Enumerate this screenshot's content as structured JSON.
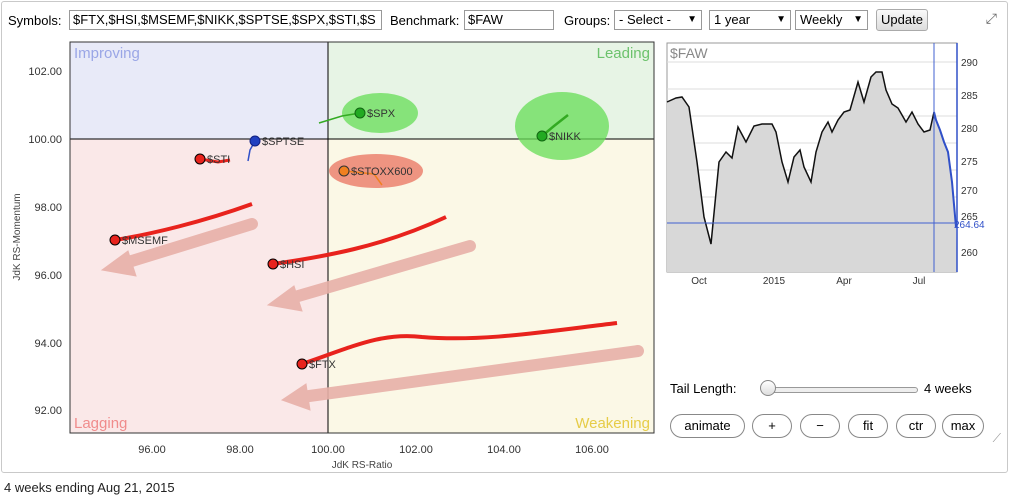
{
  "toolbar": {
    "symbols_label": "Symbols:",
    "symbols_value": "$FTX,$HSI,$MSEMF,$NIKK,$SPTSE,$SPX,$STI,$S",
    "benchmark_label": "Benchmark:",
    "benchmark_value": "$FAW",
    "groups_label": "Groups:",
    "groups_selected": "- Select -",
    "period_selected": "1 year",
    "interval_selected": "Weekly",
    "update_label": "Update"
  },
  "rrg": {
    "xlabel": "JdK RS-Ratio",
    "ylabel": "JdK RS-Momentum",
    "xticks": [
      "96.00",
      "98.00",
      "100.00",
      "102.00",
      "104.00",
      "106.00"
    ],
    "yticks": [
      "102.00",
      "100.00",
      "98.00",
      "96.00",
      "94.00",
      "92.00"
    ],
    "quadrants": {
      "improving": "Improving",
      "leading": "Leading",
      "lagging": "Lagging",
      "weakening": "Weakening"
    },
    "colors": {
      "improving": "#e8eaf8",
      "leading": "#e7f4e5",
      "lagging": "#fae8e8",
      "weakening": "#fbf8e6",
      "improving_text": "#9aa6e6",
      "leading_text": "#6cc26c",
      "lagging_text": "#f08c8c",
      "weakening_text": "#e6cc48"
    },
    "symbols": [
      "$SPX",
      "$NIKK",
      "$SPTSE",
      "$STI",
      "$STOXX600",
      "$MSEMF",
      "$HSI",
      "$FTX"
    ]
  },
  "benchmark_chart": {
    "title": "$FAW",
    "yticks": [
      "290",
      "285",
      "280",
      "275",
      "270",
      "265",
      "260"
    ],
    "xticks": [
      "Oct",
      "2015",
      "Apr",
      "Jul"
    ],
    "last_value": "264.64"
  },
  "controls": {
    "tail_length_label": "Tail Length:",
    "tail_length_value": "4 weeks",
    "tail_length_weeks": 4,
    "animate_label": "animate",
    "plus_label": "+",
    "minus_label": "−",
    "fit_label": "fit",
    "ctr_label": "ctr",
    "max_label": "max"
  },
  "caption": "4 weeks ending Aug 21, 2015"
}
